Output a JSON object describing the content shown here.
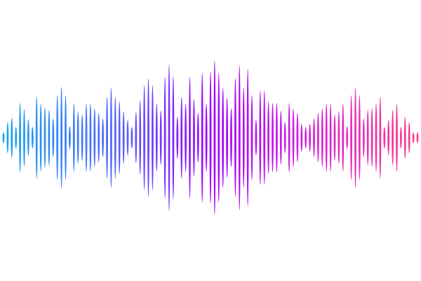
{
  "waveform": {
    "type": "audio-waveform-bars",
    "bar_count": 101,
    "amplitudes": [
      0.07,
      0.2,
      0.26,
      0.14,
      0.45,
      0.37,
      0.24,
      0.14,
      0.53,
      0.44,
      0.39,
      0.36,
      0.25,
      0.55,
      0.66,
      0.55,
      0.15,
      0.44,
      0.34,
      0.3,
      0.44,
      0.44,
      0.38,
      0.32,
      0.25,
      0.53,
      0.65,
      0.53,
      0.47,
      0.34,
      0.23,
      0.14,
      0.33,
      0.48,
      0.68,
      0.77,
      0.68,
      0.44,
      0.35,
      0.79,
      0.95,
      0.8,
      0.27,
      0.53,
      0.44,
      0.79,
      0.5,
      0.32,
      0.84,
      0.44,
      0.86,
      1.0,
      0.84,
      0.65,
      0.52,
      0.38,
      0.77,
      0.94,
      0.65,
      0.89,
      0.55,
      0.23,
      0.61,
      0.61,
      0.47,
      0.45,
      0.45,
      0.35,
      0.2,
      0.45,
      0.38,
      0.32,
      0.18,
      0.14,
      0.18,
      0.25,
      0.32,
      0.38,
      0.44,
      0.44,
      0.3,
      0.34,
      0.44,
      0.15,
      0.55,
      0.65,
      0.55,
      0.25,
      0.36,
      0.38,
      0.44,
      0.53,
      0.14,
      0.23,
      0.36,
      0.44,
      0.14,
      0.27,
      0.2,
      0.07,
      0.07
    ],
    "colors": {
      "left": "#12a8f0",
      "blue_violet": "#5a5cff",
      "violet": "#a000ff",
      "magenta": "#d21ee0",
      "right": "#ff3d85"
    },
    "background": "#ffffff"
  }
}
